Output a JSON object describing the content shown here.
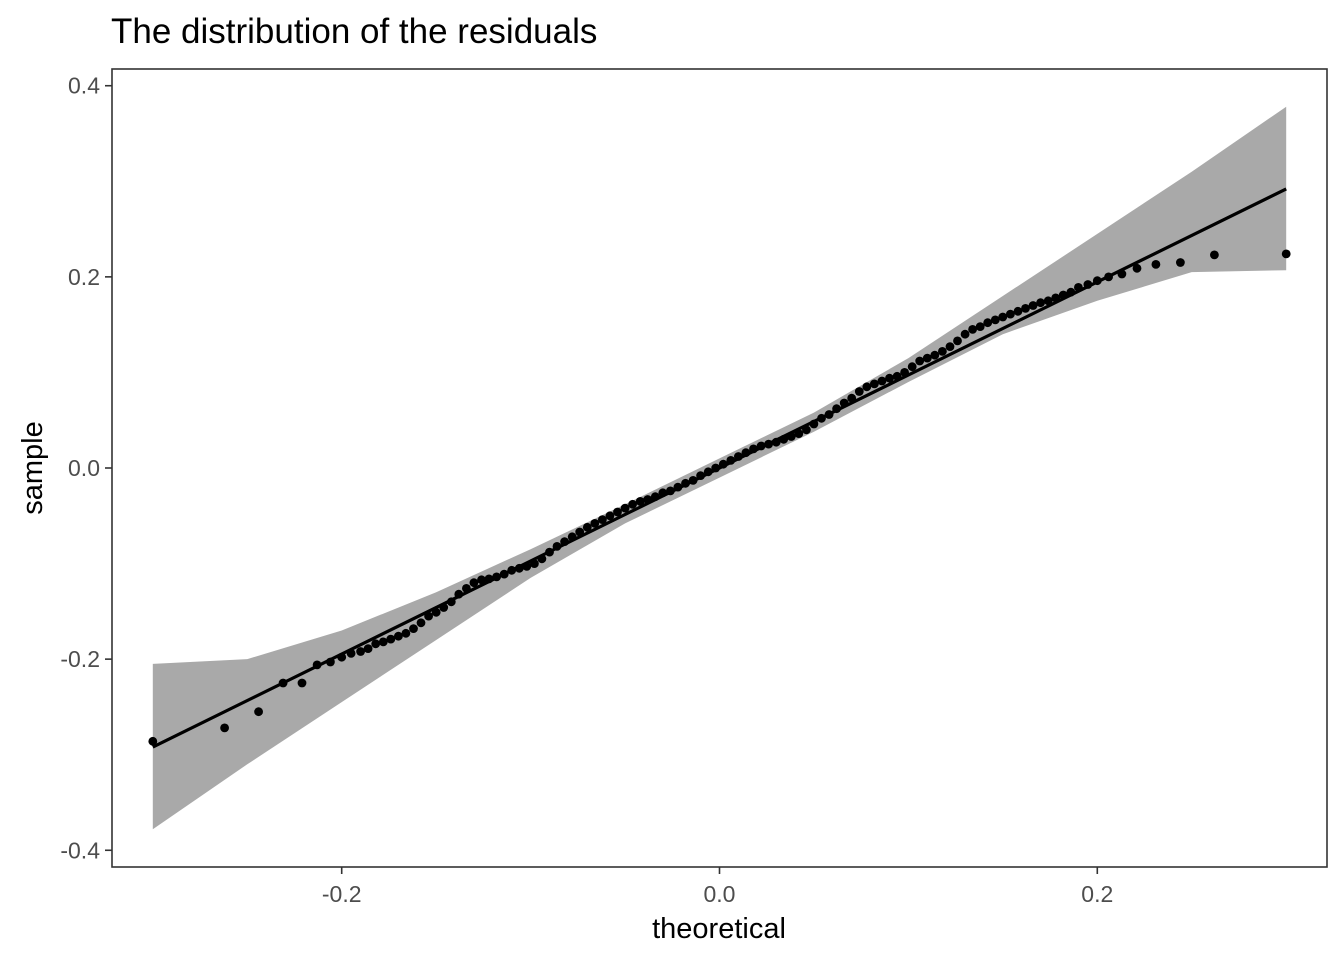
{
  "chart_data": {
    "type": "scatter",
    "title": "The distribution of the residuals",
    "xlabel": "theoretical",
    "ylabel": "sample",
    "xlim": [
      -0.3216,
      0.3216
    ],
    "ylim": [
      -0.4175,
      0.4175
    ],
    "x_ticks": [
      -0.2,
      0.0,
      0.2
    ],
    "x_tick_labels": [
      "-0.2",
      "0.0",
      "0.2"
    ],
    "y_ticks": [
      -0.4,
      -0.2,
      0.0,
      0.2,
      0.4
    ],
    "y_tick_labels": [
      "-0.4",
      "-0.2",
      "0.0",
      "0.2",
      "0.4"
    ],
    "grid": false,
    "reference_line": {
      "x": [
        -0.3,
        0.3
      ],
      "y": [
        -0.292,
        0.292
      ]
    },
    "confidence_band": {
      "x": [
        -0.3,
        -0.25,
        -0.2,
        -0.15,
        -0.1,
        -0.05,
        0.0,
        0.05,
        0.1,
        0.15,
        0.2,
        0.25,
        0.3
      ],
      "lower": [
        -0.378,
        -0.31,
        -0.245,
        -0.18,
        -0.115,
        -0.058,
        -0.01,
        0.038,
        0.09,
        0.14,
        0.175,
        0.205,
        0.207
      ],
      "upper": [
        -0.205,
        -0.2,
        -0.17,
        -0.13,
        -0.085,
        -0.038,
        0.01,
        0.058,
        0.115,
        0.18,
        0.245,
        0.31,
        0.378
      ]
    },
    "points": {
      "x": [
        -0.3,
        -0.262,
        -0.244,
        -0.231,
        -0.221,
        -0.213,
        -0.206,
        -0.2,
        -0.195,
        -0.19,
        -0.186,
        -0.182,
        -0.178,
        -0.174,
        -0.17,
        -0.166,
        -0.162,
        -0.158,
        -0.154,
        -0.15,
        -0.146,
        -0.142,
        -0.138,
        -0.134,
        -0.13,
        -0.126,
        -0.122,
        -0.118,
        -0.114,
        -0.11,
        -0.106,
        -0.102,
        -0.098,
        -0.094,
        -0.09,
        -0.086,
        -0.082,
        -0.078,
        -0.074,
        -0.07,
        -0.066,
        -0.062,
        -0.058,
        -0.054,
        -0.05,
        -0.046,
        -0.042,
        -0.038,
        -0.034,
        -0.03,
        -0.026,
        -0.022,
        -0.018,
        -0.014,
        -0.01,
        -0.006,
        -0.002,
        0.002,
        0.006,
        0.01,
        0.014,
        0.018,
        0.022,
        0.026,
        0.03,
        0.034,
        0.038,
        0.042,
        0.046,
        0.05,
        0.054,
        0.058,
        0.062,
        0.066,
        0.07,
        0.074,
        0.078,
        0.082,
        0.086,
        0.09,
        0.094,
        0.098,
        0.102,
        0.106,
        0.11,
        0.114,
        0.118,
        0.122,
        0.126,
        0.13,
        0.134,
        0.138,
        0.142,
        0.146,
        0.15,
        0.154,
        0.158,
        0.162,
        0.166,
        0.17,
        0.174,
        0.178,
        0.182,
        0.186,
        0.19,
        0.195,
        0.2,
        0.206,
        0.213,
        0.221,
        0.231,
        0.244,
        0.262,
        0.3
      ],
      "y": [
        -0.286,
        -0.272,
        -0.255,
        -0.225,
        -0.225,
        -0.206,
        -0.203,
        -0.198,
        -0.194,
        -0.192,
        -0.189,
        -0.184,
        -0.182,
        -0.179,
        -0.176,
        -0.173,
        -0.168,
        -0.162,
        -0.155,
        -0.151,
        -0.146,
        -0.14,
        -0.132,
        -0.126,
        -0.12,
        -0.117,
        -0.116,
        -0.114,
        -0.111,
        -0.107,
        -0.105,
        -0.103,
        -0.1,
        -0.095,
        -0.088,
        -0.082,
        -0.077,
        -0.072,
        -0.067,
        -0.062,
        -0.058,
        -0.054,
        -0.05,
        -0.046,
        -0.042,
        -0.038,
        -0.035,
        -0.033,
        -0.03,
        -0.026,
        -0.024,
        -0.02,
        -0.016,
        -0.013,
        -0.008,
        -0.004,
        0.0,
        0.004,
        0.008,
        0.012,
        0.016,
        0.02,
        0.023,
        0.025,
        0.027,
        0.03,
        0.033,
        0.036,
        0.04,
        0.046,
        0.052,
        0.056,
        0.062,
        0.068,
        0.073,
        0.08,
        0.085,
        0.088,
        0.091,
        0.094,
        0.096,
        0.1,
        0.106,
        0.112,
        0.115,
        0.118,
        0.122,
        0.127,
        0.133,
        0.14,
        0.145,
        0.148,
        0.152,
        0.155,
        0.158,
        0.161,
        0.164,
        0.167,
        0.17,
        0.173,
        0.175,
        0.178,
        0.181,
        0.184,
        0.189,
        0.192,
        0.196,
        0.2,
        0.203,
        0.209,
        0.213,
        0.215,
        0.223,
        0.224
      ]
    }
  },
  "colors": {
    "points": "#000000",
    "reference_line": "#000000",
    "confidence_band": "#a9a9a9",
    "panel_border": "#333333",
    "tick_label": "#4d4d4d"
  }
}
